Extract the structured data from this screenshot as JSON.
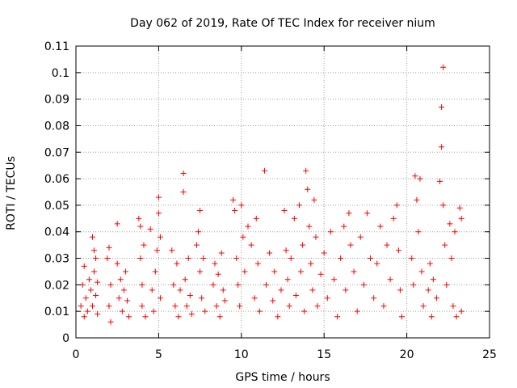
{
  "chart_data": {
    "type": "scatter",
    "title": "Day 062 of 2019, Rate Of TEC Index for receiver nium",
    "xlabel": "GPS time / hours",
    "ylabel": "ROTI / TECUs",
    "xlim": [
      0,
      25
    ],
    "ylim": [
      0,
      0.11
    ],
    "x_ticks": [
      0,
      5,
      10,
      15,
      20,
      25
    ],
    "x_tick_labels": [
      "0",
      "5",
      "10",
      "15",
      "20",
      "25"
    ],
    "y_ticks": [
      0,
      0.01,
      0.02,
      0.03,
      0.04,
      0.05,
      0.06,
      0.07,
      0.08,
      0.09,
      0.1,
      0.11
    ],
    "y_tick_labels": [
      "0",
      "0.01",
      "0.02",
      "0.03",
      "0.04",
      "0.05",
      "0.06",
      "0.07",
      "0.08",
      "0.09",
      "0.1",
      "0.11"
    ],
    "grid": true,
    "marker": "plus",
    "color": "#ff0000",
    "series": [
      {
        "points": [
          [
            0.3,
            0.012
          ],
          [
            0.4,
            0.02
          ],
          [
            0.5,
            0.008
          ],
          [
            0.5,
            0.027
          ],
          [
            0.6,
            0.015
          ],
          [
            0.7,
            0.01
          ],
          [
            0.8,
            0.022
          ],
          [
            0.9,
            0.018
          ],
          [
            1.0,
            0.038
          ],
          [
            1.0,
            0.012
          ],
          [
            1.1,
            0.033
          ],
          [
            1.1,
            0.025
          ],
          [
            1.2,
            0.016
          ],
          [
            1.2,
            0.03
          ],
          [
            1.3,
            0.009
          ],
          [
            1.3,
            0.021
          ],
          [
            1.9,
            0.03
          ],
          [
            2.0,
            0.034
          ],
          [
            2.0,
            0.012
          ],
          [
            2.1,
            0.02
          ],
          [
            2.1,
            0.006
          ],
          [
            2.5,
            0.043
          ],
          [
            2.5,
            0.028
          ],
          [
            2.6,
            0.015
          ],
          [
            2.7,
            0.022
          ],
          [
            2.8,
            0.01
          ],
          [
            2.9,
            0.018
          ],
          [
            3.0,
            0.025
          ],
          [
            3.1,
            0.014
          ],
          [
            3.2,
            0.008
          ],
          [
            3.8,
            0.045
          ],
          [
            3.9,
            0.042
          ],
          [
            3.9,
            0.03
          ],
          [
            4.0,
            0.02
          ],
          [
            4.0,
            0.012
          ],
          [
            4.1,
            0.035
          ],
          [
            4.2,
            0.008
          ],
          [
            4.5,
            0.041
          ],
          [
            4.6,
            0.018
          ],
          [
            4.7,
            0.01
          ],
          [
            4.8,
            0.025
          ],
          [
            4.9,
            0.033
          ],
          [
            5.0,
            0.053
          ],
          [
            5.0,
            0.047
          ],
          [
            5.1,
            0.038
          ],
          [
            5.1,
            0.015
          ],
          [
            5.8,
            0.033
          ],
          [
            5.9,
            0.02
          ],
          [
            6.0,
            0.012
          ],
          [
            6.1,
            0.028
          ],
          [
            6.2,
            0.008
          ],
          [
            6.3,
            0.018
          ],
          [
            6.5,
            0.062
          ],
          [
            6.5,
            0.055
          ],
          [
            6.6,
            0.022
          ],
          [
            6.7,
            0.012
          ],
          [
            6.8,
            0.03
          ],
          [
            6.9,
            0.016
          ],
          [
            7.0,
            0.009
          ],
          [
            7.3,
            0.035
          ],
          [
            7.4,
            0.04
          ],
          [
            7.5,
            0.048
          ],
          [
            7.5,
            0.025
          ],
          [
            7.6,
            0.015
          ],
          [
            7.7,
            0.03
          ],
          [
            7.8,
            0.01
          ],
          [
            8.3,
            0.02
          ],
          [
            8.4,
            0.028
          ],
          [
            8.5,
            0.012
          ],
          [
            8.6,
            0.024
          ],
          [
            8.7,
            0.008
          ],
          [
            8.8,
            0.032
          ],
          [
            8.9,
            0.018
          ],
          [
            9.0,
            0.014
          ],
          [
            9.5,
            0.052
          ],
          [
            9.6,
            0.048
          ],
          [
            9.7,
            0.03
          ],
          [
            9.8,
            0.02
          ],
          [
            9.9,
            0.012
          ],
          [
            10.0,
            0.05
          ],
          [
            10.1,
            0.038
          ],
          [
            10.2,
            0.025
          ],
          [
            10.4,
            0.042
          ],
          [
            10.6,
            0.035
          ],
          [
            10.8,
            0.015
          ],
          [
            10.9,
            0.045
          ],
          [
            11.0,
            0.028
          ],
          [
            11.1,
            0.01
          ],
          [
            11.4,
            0.063
          ],
          [
            11.5,
            0.02
          ],
          [
            11.7,
            0.032
          ],
          [
            11.9,
            0.014
          ],
          [
            12.0,
            0.025
          ],
          [
            12.2,
            0.008
          ],
          [
            12.4,
            0.018
          ],
          [
            12.6,
            0.048
          ],
          [
            12.7,
            0.033
          ],
          [
            12.8,
            0.022
          ],
          [
            12.9,
            0.012
          ],
          [
            13.0,
            0.03
          ],
          [
            13.2,
            0.045
          ],
          [
            13.3,
            0.016
          ],
          [
            13.5,
            0.05
          ],
          [
            13.6,
            0.025
          ],
          [
            13.7,
            0.035
          ],
          [
            13.8,
            0.01
          ],
          [
            13.9,
            0.063
          ],
          [
            14.0,
            0.056
          ],
          [
            14.1,
            0.042
          ],
          [
            14.2,
            0.028
          ],
          [
            14.3,
            0.018
          ],
          [
            14.4,
            0.052
          ],
          [
            14.5,
            0.038
          ],
          [
            14.6,
            0.012
          ],
          [
            14.8,
            0.024
          ],
          [
            15.0,
            0.032
          ],
          [
            15.2,
            0.015
          ],
          [
            15.4,
            0.04
          ],
          [
            15.6,
            0.022
          ],
          [
            15.8,
            0.008
          ],
          [
            16.0,
            0.03
          ],
          [
            16.2,
            0.042
          ],
          [
            16.3,
            0.018
          ],
          [
            16.5,
            0.047
          ],
          [
            16.6,
            0.035
          ],
          [
            16.8,
            0.025
          ],
          [
            17.0,
            0.01
          ],
          [
            17.2,
            0.038
          ],
          [
            17.4,
            0.02
          ],
          [
            17.6,
            0.047
          ],
          [
            17.8,
            0.03
          ],
          [
            18.0,
            0.015
          ],
          [
            18.2,
            0.028
          ],
          [
            18.4,
            0.042
          ],
          [
            18.6,
            0.012
          ],
          [
            18.8,
            0.035
          ],
          [
            19.0,
            0.022
          ],
          [
            19.2,
            0.045
          ],
          [
            19.4,
            0.05
          ],
          [
            19.5,
            0.033
          ],
          [
            19.6,
            0.018
          ],
          [
            19.7,
            0.008
          ],
          [
            20.3,
            0.03
          ],
          [
            20.4,
            0.02
          ],
          [
            20.5,
            0.061
          ],
          [
            20.6,
            0.052
          ],
          [
            20.7,
            0.04
          ],
          [
            20.8,
            0.06
          ],
          [
            20.9,
            0.025
          ],
          [
            21.0,
            0.012
          ],
          [
            21.3,
            0.018
          ],
          [
            21.4,
            0.028
          ],
          [
            21.5,
            0.008
          ],
          [
            21.6,
            0.022
          ],
          [
            21.8,
            0.015
          ],
          [
            22.0,
            0.059
          ],
          [
            22.1,
            0.072
          ],
          [
            22.1,
            0.087
          ],
          [
            22.2,
            0.102
          ],
          [
            22.2,
            0.05
          ],
          [
            22.3,
            0.035
          ],
          [
            22.4,
            0.02
          ],
          [
            22.6,
            0.043
          ],
          [
            22.7,
            0.03
          ],
          [
            22.8,
            0.012
          ],
          [
            22.9,
            0.04
          ],
          [
            23.0,
            0.008
          ],
          [
            23.2,
            0.049
          ],
          [
            23.3,
            0.045
          ],
          [
            23.3,
            0.01
          ]
        ]
      }
    ]
  }
}
